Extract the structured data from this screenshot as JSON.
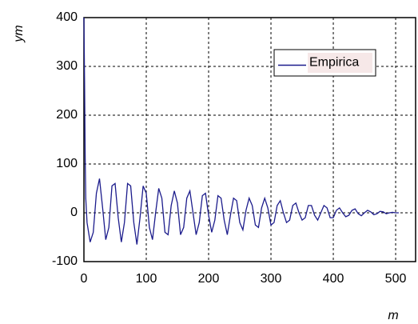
{
  "chart_data": {
    "type": "line",
    "y_label": "ym",
    "x_label": "m",
    "x": [
      0,
      1,
      2,
      3,
      5,
      10,
      15,
      20,
      25,
      30,
      35,
      40,
      45,
      50,
      55,
      60,
      65,
      70,
      75,
      80,
      85,
      90,
      95,
      100,
      105,
      110,
      115,
      120,
      125,
      130,
      135,
      140,
      145,
      150,
      155,
      160,
      165,
      170,
      175,
      180,
      185,
      190,
      195,
      200,
      205,
      210,
      215,
      220,
      225,
      230,
      235,
      240,
      245,
      250,
      255,
      260,
      265,
      270,
      275,
      280,
      285,
      290,
      295,
      300,
      305,
      310,
      315,
      320,
      325,
      330,
      335,
      340,
      345,
      350,
      355,
      360,
      365,
      370,
      375,
      380,
      385,
      390,
      395,
      400,
      405,
      410,
      415,
      420,
      425,
      430,
      435,
      440,
      445,
      450,
      455,
      460,
      465,
      470,
      475,
      480,
      485,
      490,
      495,
      500,
      505
    ],
    "series": [
      {
        "name": "Empirica",
        "color": "#1c1c8c",
        "values": [
          400,
          270,
          110,
          30,
          -20,
          -60,
          -40,
          40,
          70,
          10,
          -55,
          -30,
          55,
          60,
          -10,
          -60,
          -20,
          60,
          55,
          -20,
          -65,
          -10,
          55,
          40,
          -30,
          -55,
          0,
          50,
          30,
          -40,
          -45,
          15,
          45,
          20,
          -45,
          -30,
          30,
          45,
          0,
          -45,
          -20,
          35,
          40,
          -5,
          -40,
          -15,
          35,
          30,
          -15,
          -45,
          -5,
          30,
          25,
          -20,
          -35,
          5,
          30,
          15,
          -25,
          -30,
          10,
          30,
          10,
          -25,
          -20,
          15,
          25,
          0,
          -20,
          -15,
          15,
          20,
          0,
          -15,
          -10,
          15,
          15,
          -5,
          -15,
          0,
          15,
          10,
          -10,
          -10,
          5,
          10,
          0,
          -8,
          -5,
          5,
          8,
          -2,
          -6,
          0,
          5,
          2,
          -4,
          -2,
          3,
          2,
          -2,
          0,
          1,
          0,
          0
        ]
      }
    ],
    "xlim": [
      0,
      532
    ],
    "ylim": [
      -100,
      400
    ],
    "xticks": [
      0,
      100,
      200,
      300,
      400,
      500
    ],
    "yticks": [
      -100,
      0,
      100,
      200,
      300,
      400
    ],
    "grid": true,
    "legend": "upper right"
  }
}
